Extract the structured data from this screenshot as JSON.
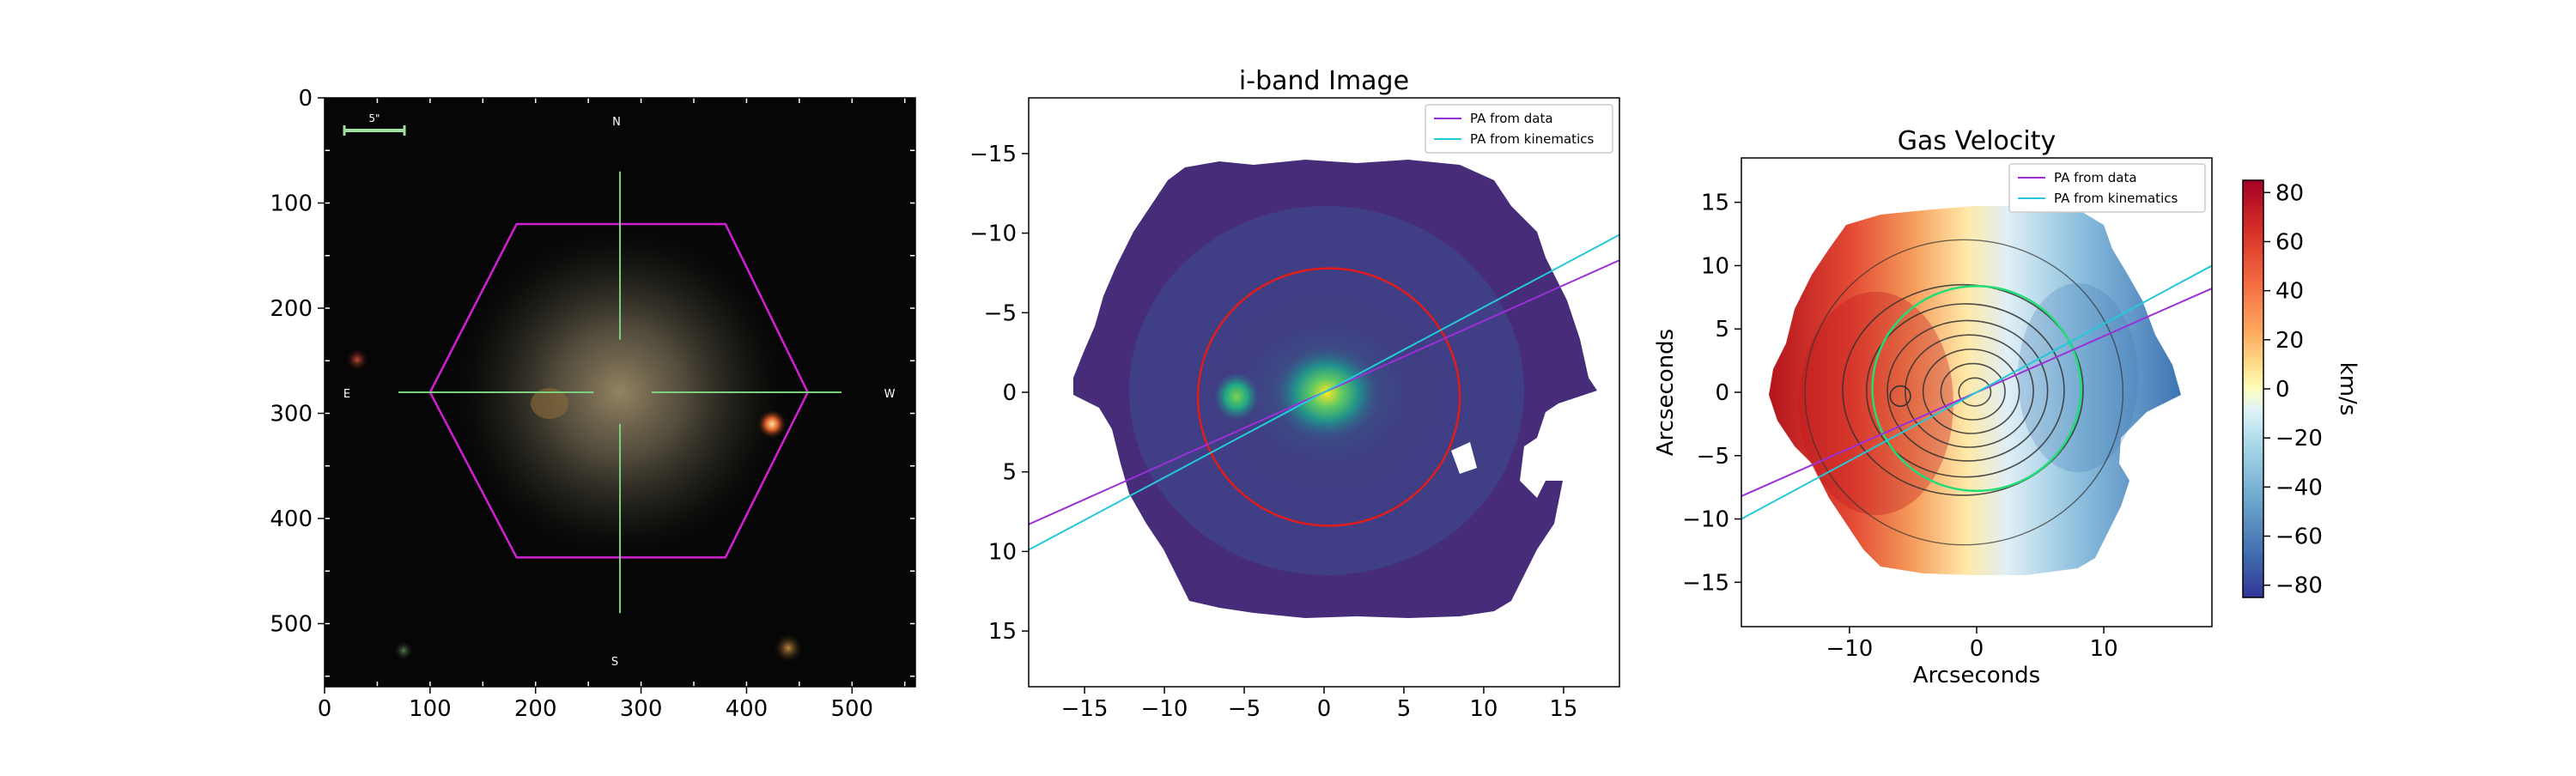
{
  "chart_data": [
    {
      "type": "image",
      "title": "",
      "xlim": [
        0,
        560
      ],
      "ylim": [
        560,
        0
      ],
      "xticks": [
        0,
        100,
        200,
        300,
        400,
        500
      ],
      "yticks": [
        0,
        100,
        200,
        300,
        400,
        500
      ],
      "annotations": {
        "north": "N",
        "south": "S",
        "east": "E",
        "west": "W",
        "scale_bar": "5\""
      },
      "ifu_hexagon": [
        [
          458,
          280
        ],
        [
          380,
          120
        ],
        [
          182,
          120
        ],
        [
          100,
          280
        ],
        [
          182,
          437
        ],
        [
          380,
          437
        ]
      ],
      "crosshair_center": [
        280,
        280
      ],
      "colors": {
        "hexagon": "#d21fd2",
        "crosshair": "#7ccf7c",
        "scale_bar": "#9fe09f"
      }
    },
    {
      "type": "heatmap",
      "title": "i-band Image",
      "xlim": [
        -18.5,
        18.5
      ],
      "ylim": [
        18.5,
        -18.5
      ],
      "xticks": [
        -15,
        -10,
        -5,
        0,
        5,
        10,
        15
      ],
      "yticks": [
        -15,
        -10,
        -5,
        0,
        5,
        10,
        15
      ],
      "colormap": "viridis",
      "legend_position": "upper right",
      "series": [
        {
          "name": "PA from data",
          "color": "#9b30d9",
          "points": [
            [
              -18.5,
              8.3
            ],
            [
              18.5,
              -8.3
            ]
          ]
        },
        {
          "name": "PA from kinematics",
          "color": "#25c8d8",
          "points": [
            [
              -18.5,
              9.9
            ],
            [
              18.5,
              -9.9
            ]
          ]
        }
      ],
      "ellipse": {
        "center": [
          0.3,
          0.3
        ],
        "semi_major": 9.4,
        "semi_minor": 8.2,
        "color": "#e01c1c"
      },
      "bright_sources": [
        {
          "x": 0,
          "y": 0
        },
        {
          "x": -6,
          "y": 0
        }
      ]
    },
    {
      "type": "heatmap",
      "title": "Gas Velocity",
      "xlabel": "Arcseconds",
      "ylabel": "Arcseconds",
      "xlim": [
        -18.5,
        18.5
      ],
      "ylim": [
        -18.5,
        18.5
      ],
      "xticks": [
        -10,
        0,
        10
      ],
      "yticks": [
        -15,
        -10,
        -5,
        0,
        5,
        10,
        15
      ],
      "colormap": "RdYlBu_r",
      "legend_position": "upper right",
      "series": [
        {
          "name": "PA from data",
          "color": "#9b30d9",
          "points": [
            [
              -18.5,
              -8.2
            ],
            [
              18.5,
              8.2
            ]
          ]
        },
        {
          "name": "PA from kinematics",
          "color": "#25c8d8",
          "points": [
            [
              -18.5,
              -10
            ],
            [
              18.5,
              10
            ]
          ]
        }
      ],
      "ellipse": {
        "center": [
          0,
          0.3
        ],
        "semi_major": 9.4,
        "semi_minor": 8.2,
        "color": "#22dd77"
      },
      "contour_centers": [
        [
          0,
          0
        ],
        [
          -6,
          -0.3
        ]
      ],
      "colorbar": {
        "label": "km/s",
        "ticks": [
          80,
          60,
          40,
          20,
          0,
          -20,
          -40,
          -60,
          -80
        ],
        "range": [
          -85,
          85
        ]
      }
    }
  ]
}
